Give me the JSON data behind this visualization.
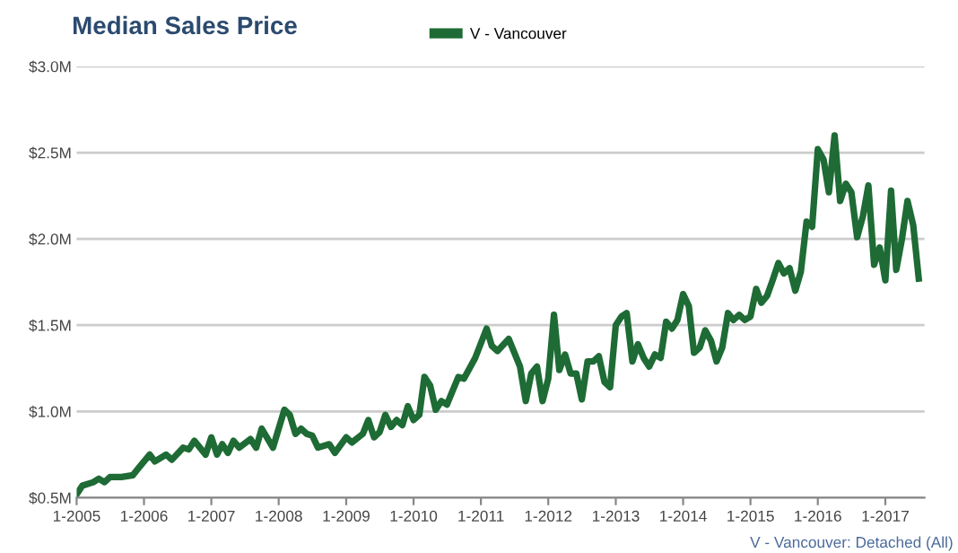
{
  "chart_data": {
    "type": "line",
    "title": "Median Sales Price",
    "x": [
      "2005-01",
      "2005-02",
      "2005-04",
      "2005-05",
      "2005-06",
      "2005-07",
      "2005-08",
      "2005-09",
      "2005-11",
      "2005-12",
      "2006-02",
      "2006-03",
      "2006-05",
      "2006-06",
      "2006-08",
      "2006-09",
      "2006-10",
      "2006-12",
      "2007-01",
      "2007-02",
      "2007-03",
      "2007-04",
      "2007-05",
      "2007-06",
      "2007-08",
      "2007-09",
      "2007-10",
      "2007-12",
      "2008-02",
      "2008-03",
      "2008-04",
      "2008-05",
      "2008-06",
      "2008-07",
      "2008-08",
      "2008-10",
      "2008-11",
      "2009-01",
      "2009-02",
      "2009-04",
      "2009-05",
      "2009-06",
      "2009-07",
      "2009-08",
      "2009-09",
      "2009-10",
      "2009-11",
      "2009-12",
      "2010-01",
      "2010-02",
      "2010-03",
      "2010-04",
      "2010-05",
      "2010-06",
      "2010-07",
      "2010-08",
      "2010-09",
      "2010-10",
      "2010-12",
      "2011-02",
      "2011-03",
      "2011-04",
      "2011-06",
      "2011-08",
      "2011-09",
      "2011-10",
      "2011-11",
      "2011-12",
      "2012-01",
      "2012-02",
      "2012-03",
      "2012-04",
      "2012-05",
      "2012-06",
      "2012-07",
      "2012-08",
      "2012-09",
      "2012-10",
      "2012-11",
      "2012-12",
      "2013-01",
      "2013-02",
      "2013-03",
      "2013-04",
      "2013-05",
      "2013-06",
      "2013-07",
      "2013-08",
      "2013-09",
      "2013-10",
      "2013-11",
      "2013-12",
      "2014-01",
      "2014-02",
      "2014-03",
      "2014-04",
      "2014-05",
      "2014-06",
      "2014-07",
      "2014-08",
      "2014-09",
      "2014-10",
      "2014-11",
      "2014-12",
      "2015-01",
      "2015-02",
      "2015-03",
      "2015-04",
      "2015-05",
      "2015-06",
      "2015-07",
      "2015-08",
      "2015-09",
      "2015-10",
      "2015-11",
      "2015-12",
      "2016-01",
      "2016-02",
      "2016-03",
      "2016-04",
      "2016-05",
      "2016-06",
      "2016-07",
      "2016-08",
      "2016-09",
      "2016-10",
      "2016-11",
      "2016-12",
      "2017-01",
      "2017-02",
      "2017-03",
      "2017-04",
      "2017-05",
      "2017-06",
      "2017-07"
    ],
    "series": [
      {
        "name": "V - Vancouver",
        "color": "#1e6b35",
        "values": [
          0.52,
          0.57,
          0.59,
          0.61,
          0.59,
          0.62,
          0.62,
          0.62,
          0.63,
          0.67,
          0.75,
          0.71,
          0.75,
          0.72,
          0.79,
          0.78,
          0.83,
          0.75,
          0.85,
          0.75,
          0.81,
          0.76,
          0.83,
          0.79,
          0.84,
          0.79,
          0.9,
          0.79,
          1.01,
          0.98,
          0.87,
          0.9,
          0.87,
          0.86,
          0.79,
          0.81,
          0.76,
          0.85,
          0.82,
          0.87,
          0.95,
          0.85,
          0.88,
          0.98,
          0.91,
          0.95,
          0.92,
          1.03,
          0.95,
          0.98,
          1.2,
          1.15,
          1.01,
          1.06,
          1.04,
          1.12,
          1.2,
          1.19,
          1.31,
          1.48,
          1.38,
          1.35,
          1.42,
          1.26,
          1.06,
          1.22,
          1.26,
          1.06,
          1.19,
          1.56,
          1.24,
          1.33,
          1.22,
          1.22,
          1.07,
          1.29,
          1.29,
          1.32,
          1.17,
          1.14,
          1.5,
          1.55,
          1.57,
          1.29,
          1.39,
          1.31,
          1.26,
          1.33,
          1.31,
          1.52,
          1.48,
          1.53,
          1.68,
          1.61,
          1.34,
          1.37,
          1.47,
          1.41,
          1.29,
          1.37,
          1.57,
          1.53,
          1.56,
          1.53,
          1.55,
          1.71,
          1.63,
          1.67,
          1.76,
          1.86,
          1.8,
          1.83,
          1.7,
          1.81,
          2.1,
          2.07,
          2.52,
          2.46,
          2.27,
          2.6,
          2.22,
          2.32,
          2.27,
          2.01,
          2.13,
          2.31,
          1.85,
          1.95,
          1.76,
          2.28,
          1.82,
          2.0,
          2.22,
          2.08,
          1.77
        ]
      }
    ],
    "xlim": [
      "2005-01",
      "2017-08"
    ],
    "xticks": [
      {
        "value": "2005-01",
        "label": "1-2005"
      },
      {
        "value": "2006-01",
        "label": "1-2006"
      },
      {
        "value": "2007-01",
        "label": "1-2007"
      },
      {
        "value": "2008-01",
        "label": "1-2008"
      },
      {
        "value": "2009-01",
        "label": "1-2009"
      },
      {
        "value": "2010-01",
        "label": "1-2010"
      },
      {
        "value": "2011-01",
        "label": "1-2011"
      },
      {
        "value": "2012-01",
        "label": "1-2012"
      },
      {
        "value": "2013-01",
        "label": "1-2013"
      },
      {
        "value": "2014-01",
        "label": "1-2014"
      },
      {
        "value": "2015-01",
        "label": "1-2015"
      },
      {
        "value": "2016-01",
        "label": "1-2016"
      },
      {
        "value": "2017-01",
        "label": "1-2017"
      }
    ],
    "ylim": [
      0.5,
      3.0
    ],
    "yticks": [
      {
        "value": 0.5,
        "label": "$0.5M"
      },
      {
        "value": 1.0,
        "label": "$1.0M"
      },
      {
        "value": 1.5,
        "label": "$1.5M"
      },
      {
        "value": 2.0,
        "label": "$2.0M"
      },
      {
        "value": 2.5,
        "label": "$2.5M"
      },
      {
        "value": 3.0,
        "label": "$3.0M"
      }
    ],
    "grid": "y",
    "legend": "top",
    "marker": "none",
    "line_style": "solid",
    "annotations": [
      "V - Vancouver: Detached (All)"
    ]
  }
}
